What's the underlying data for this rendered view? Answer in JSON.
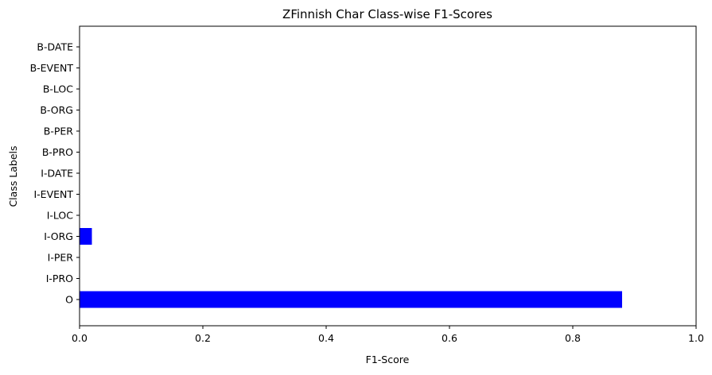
{
  "chart_data": {
    "type": "bar",
    "orientation": "horizontal",
    "title": "ZFinnish Char Class-wise F1-Scores",
    "xlabel": "F1-Score",
    "ylabel": "Class Labels",
    "xlim": [
      0,
      1.0
    ],
    "xticks": [
      "0.0",
      "0.2",
      "0.4",
      "0.6",
      "0.8",
      "1.0"
    ],
    "xtick_values": [
      0,
      0.2,
      0.4,
      0.6,
      0.8,
      1.0
    ],
    "categories": [
      "B-DATE",
      "B-EVENT",
      "B-LOC",
      "B-ORG",
      "B-PER",
      "B-PRO",
      "I-DATE",
      "I-EVENT",
      "I-LOC",
      "I-ORG",
      "I-PER",
      "I-PRO",
      "O"
    ],
    "values": [
      0,
      0,
      0,
      0,
      0,
      0,
      0,
      0,
      0,
      0.02,
      0,
      0,
      0.88
    ],
    "bar_color": "#0000ff",
    "grid": false,
    "legend": "none"
  }
}
